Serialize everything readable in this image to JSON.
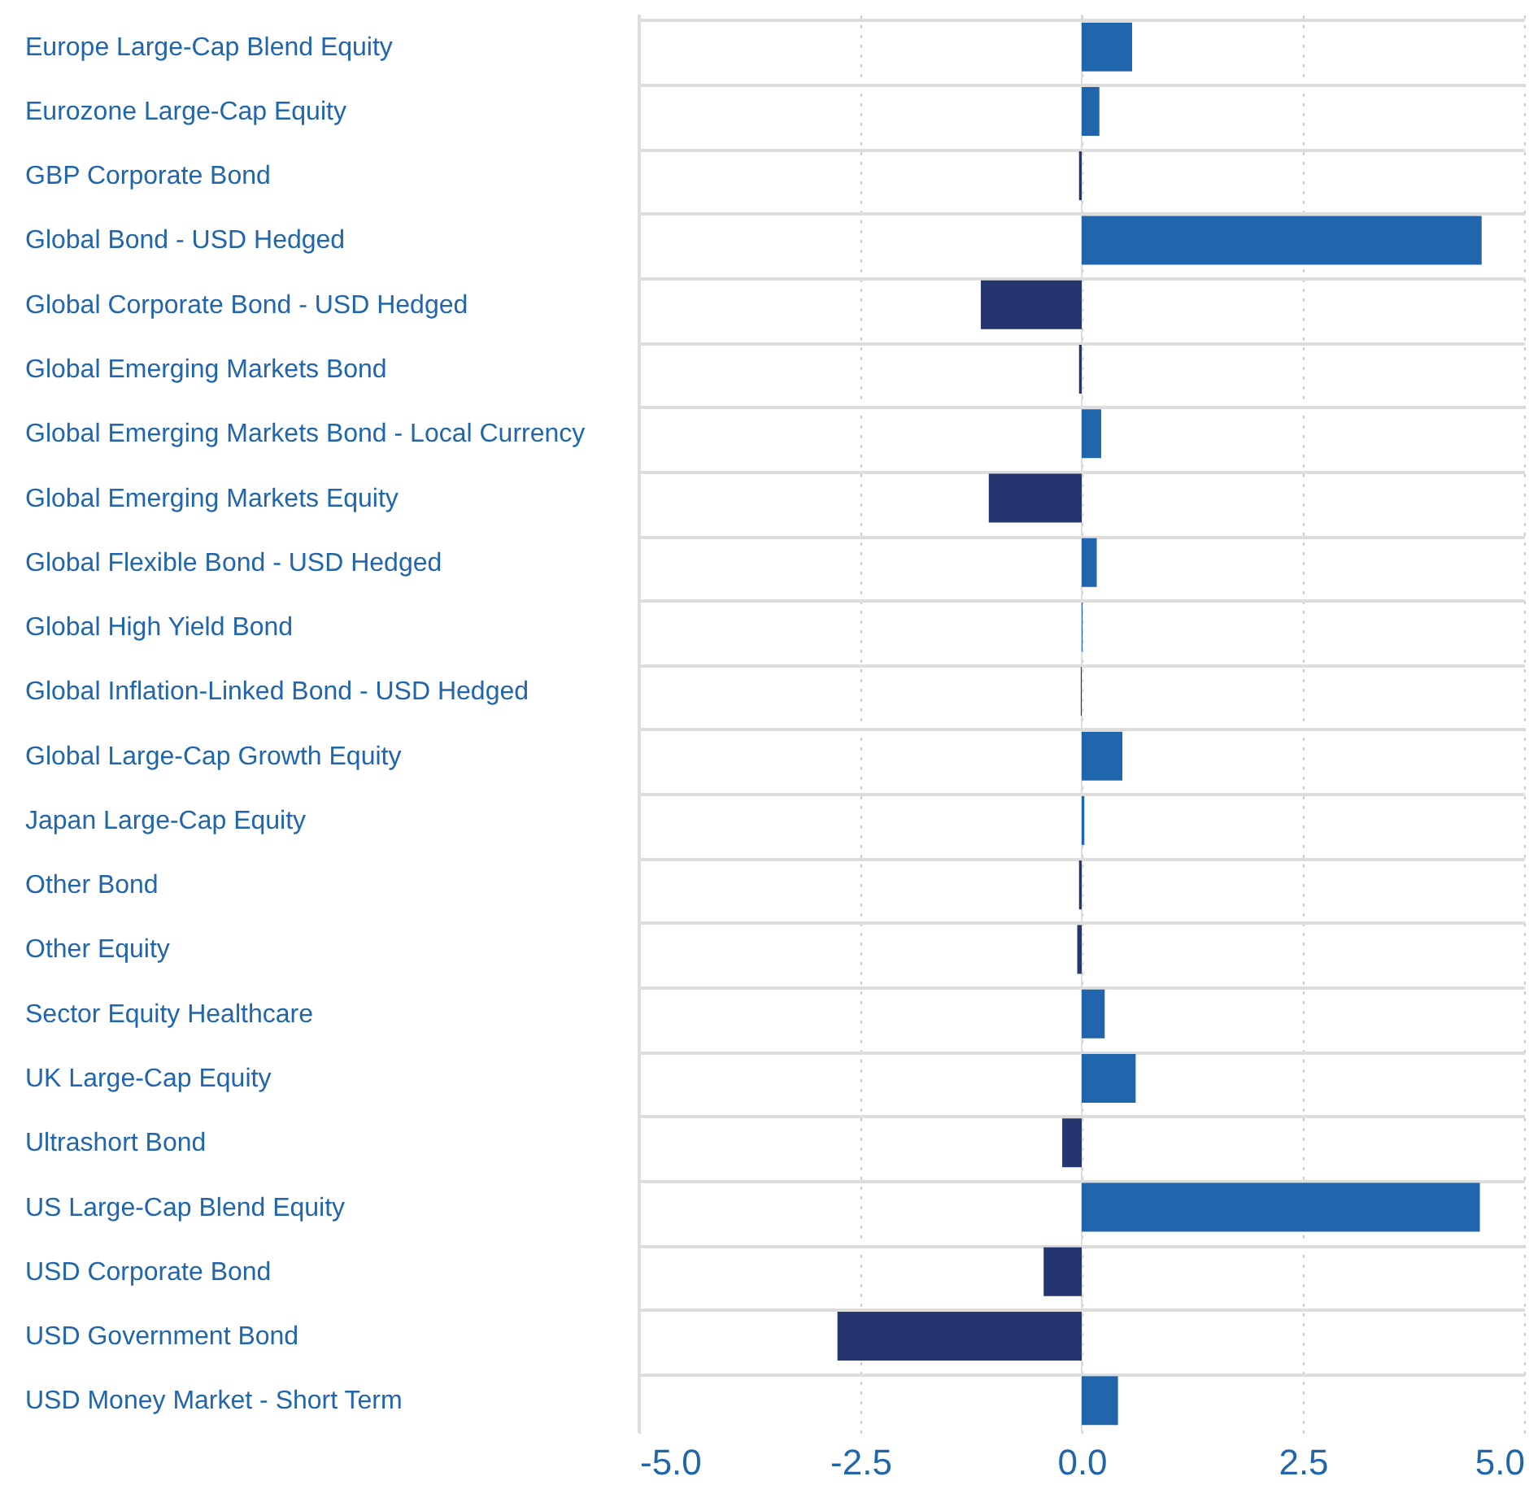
{
  "chart_data": {
    "type": "bar",
    "orientation": "horizontal",
    "categories": [
      "Europe Large-Cap Blend Equity",
      "Eurozone Large-Cap Equity",
      "GBP Corporate Bond",
      "Global Bond - USD Hedged",
      "Global Corporate Bond - USD Hedged",
      "Global Emerging Markets Bond",
      "Global Emerging Markets Bond - Local Currency",
      "Global Emerging Markets Equity",
      "Global Flexible Bond - USD Hedged",
      "Global High Yield Bond",
      "Global Inflation-Linked Bond - USD Hedged",
      "Global Large-Cap Growth Equity",
      "Japan Large-Cap Equity",
      "Other Bond",
      "Other Equity",
      "Sector Equity Healthcare",
      "UK Large-Cap Equity",
      "Ultrashort Bond",
      "US Large-Cap Blend Equity",
      "USD Corporate Bond",
      "USD Government Bond",
      "USD Money Market - Short Term"
    ],
    "values": [
      0.57,
      0.2,
      -0.03,
      4.52,
      -1.14,
      -0.03,
      0.22,
      -1.05,
      0.17,
      0.01,
      -0.01,
      0.46,
      0.03,
      -0.03,
      -0.05,
      0.26,
      0.61,
      -0.22,
      4.5,
      -0.43,
      -2.76,
      0.41
    ],
    "colors": [
      "#2166ac",
      "#2166ac",
      "#243570",
      "#2166ac",
      "#243570",
      "#243570",
      "#2166ac",
      "#243570",
      "#2166ac",
      "#2166ac",
      "#243570",
      "#2166ac",
      "#2166ac",
      "#243570",
      "#243570",
      "#2166ac",
      "#2166ac",
      "#243570",
      "#2166ac",
      "#243570",
      "#243570",
      "#2166ac"
    ],
    "xlim": [
      -5,
      5
    ],
    "xticks": [
      {
        "value": -5,
        "label": "-5.0"
      },
      {
        "value": -2.5,
        "label": "-2.5"
      },
      {
        "value": 0,
        "label": "0.0"
      },
      {
        "value": 2.5,
        "label": "2.5"
      },
      {
        "value": 5,
        "label": "5.0"
      }
    ],
    "grid": true
  }
}
